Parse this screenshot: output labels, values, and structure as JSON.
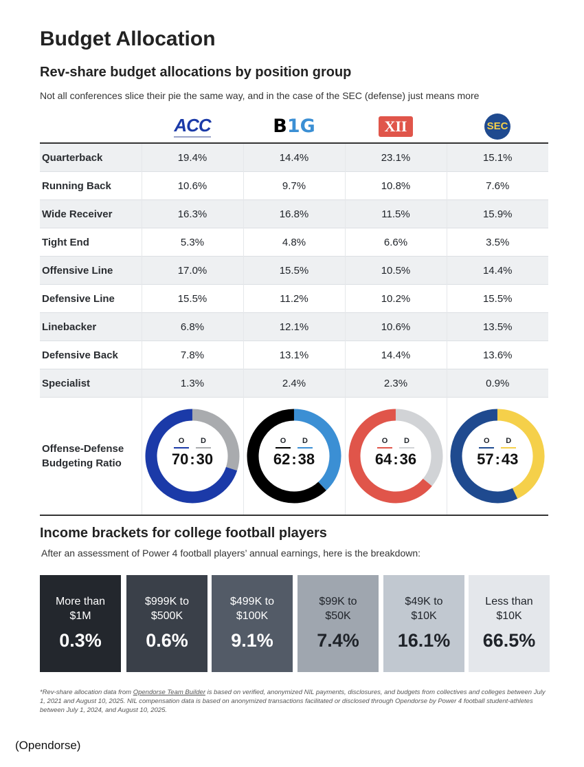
{
  "title": "Budget Allocation",
  "section1": {
    "title": "Rev-share budget allocations by position group",
    "subtitle": "Not all conferences slice their pie the same way, and in the case of the SEC (defense) just means more"
  },
  "conferences": [
    {
      "name": "ACC",
      "offense_color": "#1b3aa8",
      "defense_color": "#a9abae"
    },
    {
      "name": "B1G",
      "offense_color": "#000000",
      "defense_color": "#3b8fd4"
    },
    {
      "name": "XII",
      "offense_color": "#e0554a",
      "defense_color": "#d1d3d6"
    },
    {
      "name": "SEC",
      "offense_color": "#1f4a8f",
      "defense_color": "#f5d04a"
    }
  ],
  "rows": [
    {
      "label": "Quarterback",
      "values": [
        "19.4%",
        "14.4%",
        "23.1%",
        "15.1%"
      ]
    },
    {
      "label": "Running Back",
      "values": [
        "10.6%",
        "9.7%",
        "10.8%",
        "7.6%"
      ]
    },
    {
      "label": "Wide Receiver",
      "values": [
        "16.3%",
        "16.8%",
        "11.5%",
        "15.9%"
      ]
    },
    {
      "label": "Tight End",
      "values": [
        "5.3%",
        "4.8%",
        "6.6%",
        "3.5%"
      ]
    },
    {
      "label": "Offensive Line",
      "values": [
        "17.0%",
        "15.5%",
        "10.5%",
        "14.4%"
      ]
    },
    {
      "label": "Defensive Line",
      "values": [
        "15.5%",
        "11.2%",
        "10.2%",
        "15.5%"
      ]
    },
    {
      "label": "Linebacker",
      "values": [
        "6.8%",
        "12.1%",
        "10.6%",
        "13.5%"
      ]
    },
    {
      "label": "Defensive Back",
      "values": [
        "7.8%",
        "13.1%",
        "14.4%",
        "13.6%"
      ]
    },
    {
      "label": "Specialist",
      "values": [
        "1.3%",
        "2.4%",
        "2.3%",
        "0.9%"
      ]
    }
  ],
  "ratio": {
    "label_line1": "Offense-Defense",
    "label_line2": "Budgeting Ratio",
    "o_label": "O",
    "d_label": "D",
    "sep": ":",
    "values": [
      {
        "o": 70,
        "d": 30
      },
      {
        "o": 62,
        "d": 38
      },
      {
        "o": 64,
        "d": 36
      },
      {
        "o": 57,
        "d": 43
      }
    ]
  },
  "section2": {
    "title": "Income brackets for college football players",
    "subtitle": "After an assessment of Power 4 football players’ annual earnings, here is the breakdown:",
    "brackets": [
      {
        "l1": "More than",
        "l2": "$1M",
        "value": "0.3%",
        "bg": "#23272d",
        "fg": "#ffffff"
      },
      {
        "l1": "$999K to",
        "l2": "$500K",
        "value": "0.6%",
        "bg": "#3a4049",
        "fg": "#ffffff"
      },
      {
        "l1": "$499K to",
        "l2": "$100K",
        "value": "9.1%",
        "bg": "#535b67",
        "fg": "#ffffff"
      },
      {
        "l1": "$99K to",
        "l2": "$50K",
        "value": "7.4%",
        "bg": "#9fa6af",
        "fg": "#1f2329"
      },
      {
        "l1": "$49K to",
        "l2": "$10K",
        "value": "16.1%",
        "bg": "#c1c8d0",
        "fg": "#1f2329"
      },
      {
        "l1": "Less than",
        "l2": "$10K",
        "value": "66.5%",
        "bg": "#e4e7eb",
        "fg": "#1f2329"
      }
    ]
  },
  "footnote": {
    "pre": "*Rev-share allocation data from ",
    "link": "Opendorse Team Builder",
    "post": " is based on verified, anonymized NIL payments, disclosures, and budgets from collectives and colleges between July 1, 2021 and August 10, 2025. NIL compensation data is based on anonymized transactions facilitated or disclosed through Opendorse by Power 4 football student-athletes between July 1, 2024, and August 10, 2025."
  },
  "source": "(Opendorse)"
}
